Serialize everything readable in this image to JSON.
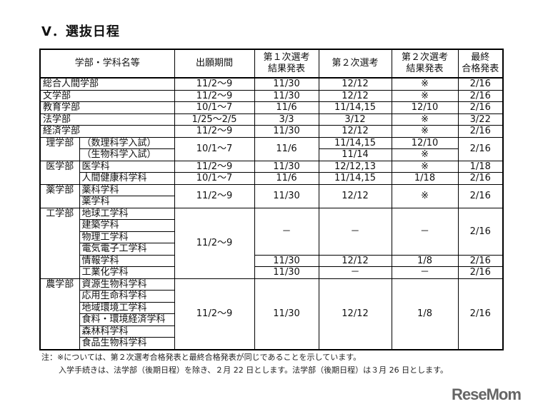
{
  "title": "V．選抜日程",
  "headers": [
    "学部・学科名等",
    "出願期間",
    "第１次選考\n結果発表",
    "第２次選考",
    "第２次選考\n結果発表",
    "最終\n合格発表"
  ],
  "rows": [
    [
      {
        "t": "総合人間学部",
        "cs": 2,
        "l": 1
      },
      {
        "t": "11/2～9"
      },
      {
        "t": "11/30"
      },
      {
        "t": "12/12"
      },
      {
        "t": "※"
      },
      {
        "t": "2/16"
      }
    ],
    [
      {
        "t": "文学部",
        "cs": 2,
        "l": 1
      },
      {
        "t": "11/2～9"
      },
      {
        "t": "11/30"
      },
      {
        "t": "12/12"
      },
      {
        "t": "※"
      },
      {
        "t": "2/16"
      }
    ],
    [
      {
        "t": "教育学部",
        "cs": 2,
        "l": 1
      },
      {
        "t": "10/1～7"
      },
      {
        "t": "11/6"
      },
      {
        "t": "11/14,15"
      },
      {
        "t": "12/10"
      },
      {
        "t": "2/16"
      }
    ],
    [
      {
        "t": "法学部",
        "cs": 2,
        "l": 1
      },
      {
        "t": "1/25～2/5"
      },
      {
        "t": "3/3"
      },
      {
        "t": "3/12"
      },
      {
        "t": "※"
      },
      {
        "t": "3/22"
      }
    ],
    [
      {
        "t": "経済学部",
        "cs": 2,
        "l": 1
      },
      {
        "t": "11/2～9"
      },
      {
        "t": "11/30"
      },
      {
        "t": "12/12"
      },
      {
        "t": "※"
      },
      {
        "t": "2/16"
      }
    ],
    [
      {
        "t": "理学部",
        "rs": 2,
        "d": 1
      },
      {
        "t": "（数理科学入試）",
        "l": 1
      },
      {
        "t": "10/1～7",
        "rs": 2
      },
      {
        "t": "11/6",
        "rs": 2
      },
      {
        "t": "11/14,15"
      },
      {
        "t": "12/10"
      },
      {
        "t": "2/16",
        "rs": 2
      }
    ],
    [
      {
        "t": "（生物科学入試）",
        "l": 1
      },
      {
        "t": "11/14"
      },
      {
        "t": "※"
      }
    ],
    [
      {
        "t": "医学部",
        "rs": 2,
        "d": 1
      },
      {
        "t": "医学科",
        "l": 1
      },
      {
        "t": "11/2～9"
      },
      {
        "t": "11/30"
      },
      {
        "t": "12/12,13"
      },
      {
        "t": "※"
      },
      {
        "t": "1/18"
      }
    ],
    [
      {
        "t": "人間健康科学科",
        "l": 1
      },
      {
        "t": "10/1～7"
      },
      {
        "t": "11/6"
      },
      {
        "t": "11/14,15"
      },
      {
        "t": "1/18"
      },
      {
        "t": "2/16"
      }
    ],
    [
      {
        "t": "薬学部",
        "rs": 2,
        "d": 1
      },
      {
        "t": "薬科学科",
        "l": 1
      },
      {
        "t": "11/2～9",
        "rs": 2
      },
      {
        "t": "11/30",
        "rs": 2
      },
      {
        "t": "12/12",
        "rs": 2
      },
      {
        "t": "※",
        "rs": 2
      },
      {
        "t": "2/16",
        "rs": 2
      }
    ],
    [
      {
        "t": "薬学科",
        "l": 1
      }
    ],
    [
      {
        "t": "工学部",
        "rs": 6,
        "d": 1
      },
      {
        "t": "地球工学科",
        "l": 1
      },
      {
        "t": "11/2～9",
        "rs": 6
      },
      {
        "t": "－",
        "rs": 4
      },
      {
        "t": "－",
        "rs": 4
      },
      {
        "t": "－",
        "rs": 4
      },
      {
        "t": "2/16",
        "rs": 4
      }
    ],
    [
      {
        "t": "建築学科",
        "l": 1
      }
    ],
    [
      {
        "t": "物理工学科",
        "l": 1
      }
    ],
    [
      {
        "t": "電気電子工学科",
        "l": 1
      }
    ],
    [
      {
        "t": "情報学科",
        "l": 1
      },
      {
        "t": "11/30"
      },
      {
        "t": "12/12"
      },
      {
        "t": "1/8"
      },
      {
        "t": "2/16"
      }
    ],
    [
      {
        "t": "工業化学科",
        "l": 1
      },
      {
        "t": "11/30"
      },
      {
        "t": "－"
      },
      {
        "t": "－"
      },
      {
        "t": "2/16"
      }
    ],
    [
      {
        "t": "農学部",
        "rs": 6,
        "d": 1
      },
      {
        "t": "資源生物科学科",
        "l": 1
      },
      {
        "t": "11/2～9",
        "rs": 6
      },
      {
        "t": "11/30",
        "rs": 6
      },
      {
        "t": "12/12",
        "rs": 6
      },
      {
        "t": "1/8",
        "rs": 6
      },
      {
        "t": "2/16",
        "rs": 6
      }
    ],
    [
      {
        "t": "応用生命科学科",
        "l": 1
      }
    ],
    [
      {
        "t": "地域環境工学科",
        "l": 1
      }
    ],
    [
      {
        "t": "食料・環境経済学科",
        "l": 1
      }
    ],
    [
      {
        "t": "森林科学科",
        "l": 1
      }
    ],
    [
      {
        "t": "食品生物科学科",
        "l": 1
      }
    ]
  ],
  "notes": [
    "注：※については、第２次選考合格発表と最終合格発表が同じであることを示しています。",
    "入学手続きは、法学部（後期日程）を除き、２月 22 日とします。法学部（後期日程）は３月 26 日とします。"
  ],
  "logo": "ReseMom"
}
